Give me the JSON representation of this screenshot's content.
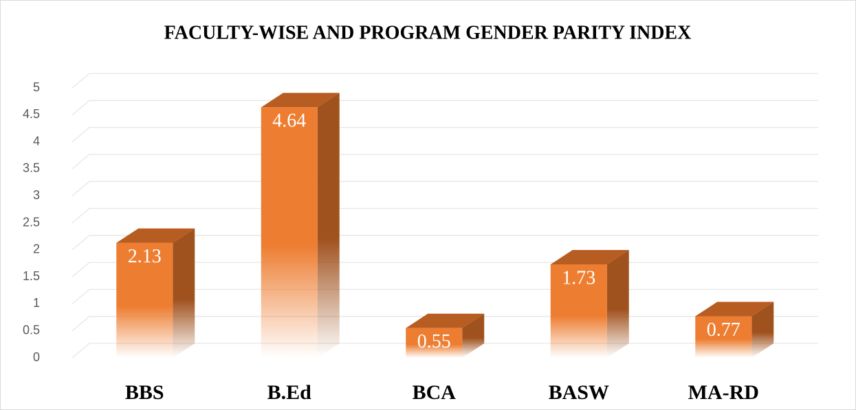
{
  "chart_data": {
    "type": "bar3d",
    "title": "FACULTY-WISE AND PROGRAM GENDER PARITY INDEX",
    "categories": [
      "BBS",
      "B.Ed",
      "BCA",
      "BASW",
      "MA-RD"
    ],
    "values": [
      2.13,
      4.64,
      0.55,
      1.73,
      0.77
    ],
    "color": "#ED7D31",
    "ylim": [
      0,
      5
    ],
    "yticks": [
      0,
      0.5,
      1,
      1.5,
      2,
      2.5,
      3,
      3.5,
      4,
      4.5,
      5
    ],
    "grid": true
  }
}
